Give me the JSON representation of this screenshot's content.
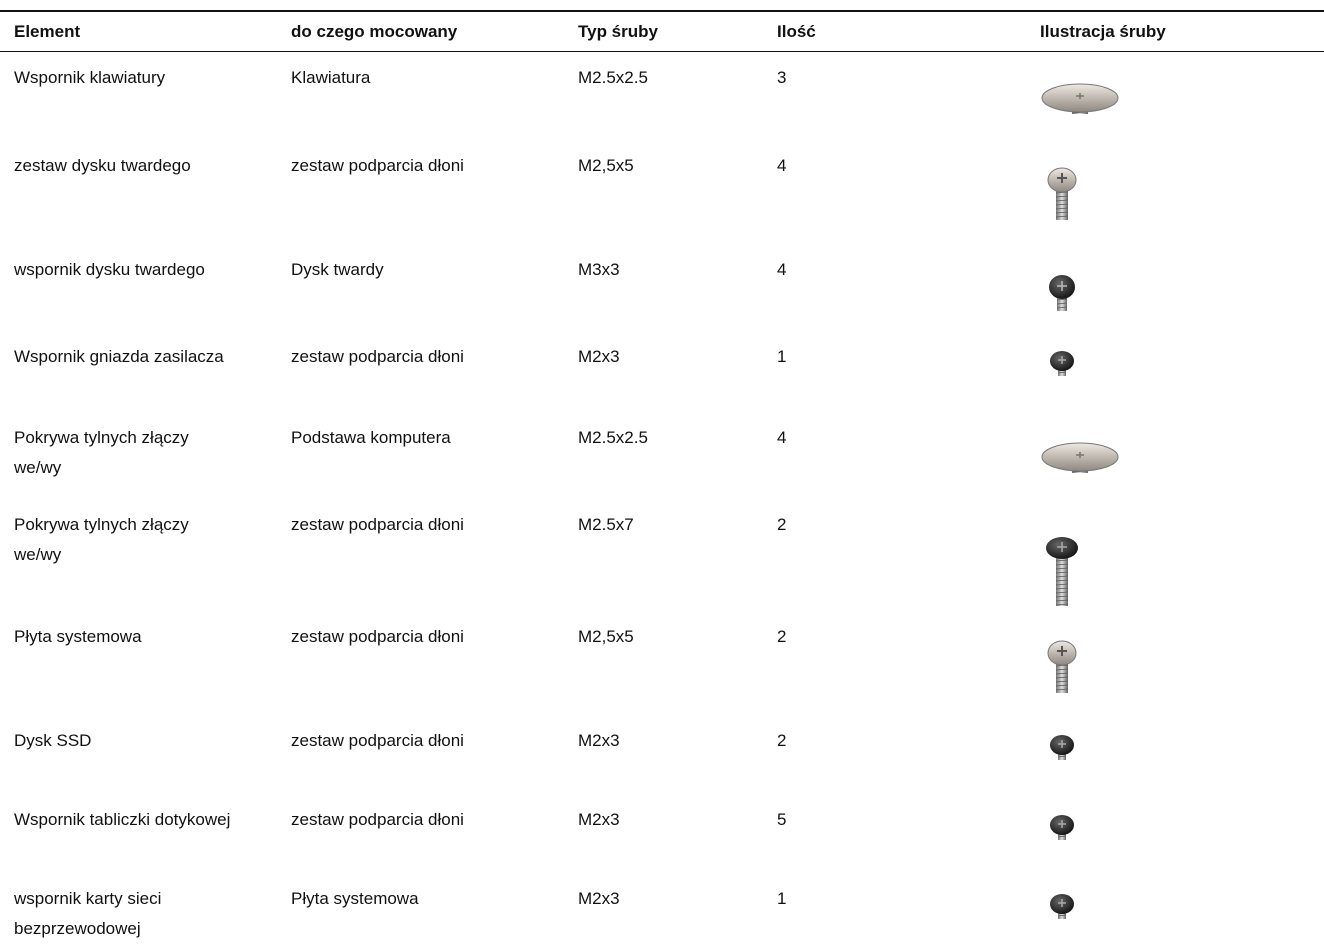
{
  "table": {
    "header": [
      "Element",
      "do czego mocowany",
      "Typ śruby",
      "Ilość",
      "Ilustracja śruby"
    ],
    "rows": [
      [
        "Wspornik klawiatury",
        "Klawiatura",
        "M2.5x2.5",
        3
      ],
      [
        "zestaw dysku twardego",
        "zestaw podparcia dłoni",
        "M2,5x5",
        4
      ],
      [
        "wspornik dysku twardego",
        "Dysk twardy",
        "M3x3",
        4
      ],
      [
        "Wspornik gniazda zasilacza",
        "zestaw podparcia dłoni",
        "M2x3",
        1
      ],
      [
        "Pokrywa tylnych złączy we/wy",
        "Podstawa komputera",
        "M2.5x2.5",
        4
      ],
      [
        "Pokrywa tylnych złączy we/wy",
        "zestaw podparcia dłoni",
        "M2.5x7",
        2
      ],
      [
        "Płyta systemowa",
        "zestaw podparcia dłoni",
        "M2,5x5",
        2
      ],
      [
        "Dysk SSD",
        "zestaw podparcia dłoni",
        "M2x3",
        2
      ],
      [
        "Wspornik tabliczki dotykowej",
        "zestaw podparcia dłoni",
        "M2x3",
        5
      ],
      [
        "wspornik karty sieci bezprzewodowej",
        "Płyta systemowa",
        "M2x3",
        1
      ]
    ]
  }
}
